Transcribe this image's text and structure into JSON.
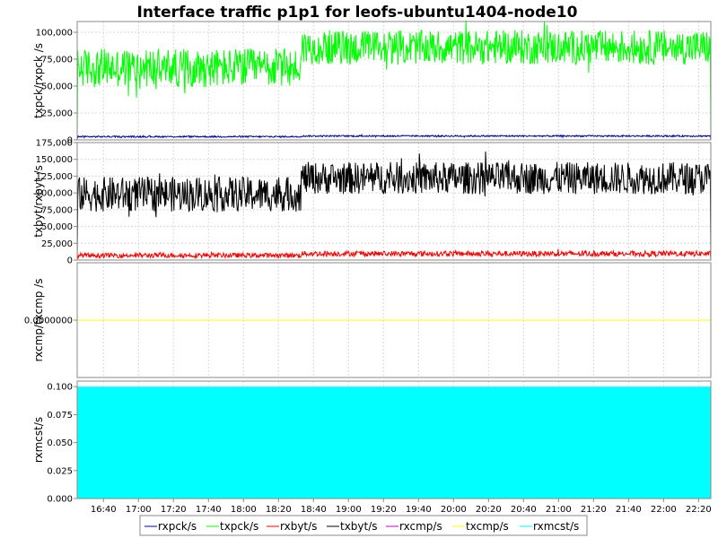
{
  "chart_data": {
    "type": "line",
    "title": "Interface traffic p1p1 for leofs-ubuntu1404-node10",
    "time": {
      "start": "16:25",
      "end": "22:27",
      "tick_labels": [
        "16:40",
        "17:00",
        "17:20",
        "17:40",
        "18:00",
        "18:20",
        "18:40",
        "19:00",
        "19:20",
        "19:40",
        "20:00",
        "20:20",
        "20:40",
        "21:00",
        "21:20",
        "21:40",
        "22:00",
        "22:20"
      ],
      "step_change_at": "18:33"
    },
    "panels": [
      {
        "ylabel": "txpck/rxpck /s",
        "ylim": [
          0,
          110000
        ],
        "ytick_labels": [
          "0",
          "25,000",
          "50,000",
          "75,000",
          "100,000"
        ],
        "yticks": [
          0,
          25000,
          50000,
          75000,
          100000
        ],
        "grid": true,
        "series": [
          {
            "name": "txpck/s",
            "color": "#00ff00",
            "before_mean": 67000,
            "before_amp": 18000,
            "after_mean": 86000,
            "after_amp": 16000
          },
          {
            "name": "rxpck/s",
            "color": "#0000aa",
            "before_mean": 3000,
            "before_amp": 700,
            "after_mean": 3600,
            "after_amp": 700
          }
        ]
      },
      {
        "ylabel": "txbyt/rxbyt /s",
        "ylim": [
          0,
          175000
        ],
        "ytick_labels": [
          "0",
          "25,000",
          "50,000",
          "75,000",
          "100,000",
          "125,000",
          "150,000",
          "175,000"
        ],
        "yticks": [
          0,
          25000,
          50000,
          75000,
          100000,
          125000,
          150000,
          175000
        ],
        "grid": true,
        "series": [
          {
            "name": "txbyt/s",
            "color": "#000000",
            "before_mean": 98000,
            "before_amp": 26000,
            "after_mean": 122000,
            "after_amp": 24000
          },
          {
            "name": "rxbyt/s",
            "color": "#ff0000",
            "before_mean": 7000,
            "before_amp": 3500,
            "after_mean": 9500,
            "after_amp": 4000
          }
        ]
      },
      {
        "ylabel": "rxcmp/txcmp /s",
        "ylim": [
          -1,
          1
        ],
        "ytick_labels": [
          "0.0000000"
        ],
        "yticks": [
          0
        ],
        "grid": true,
        "series": [
          {
            "name": "rxcmp/s",
            "color": "#cc00cc",
            "value": 0
          },
          {
            "name": "txcmp/s",
            "color": "#ffff00",
            "value": 0
          }
        ]
      },
      {
        "ylabel": "rxmcst/s",
        "ylim": [
          0,
          0.105
        ],
        "ytick_labels": [
          "0.000",
          "0.025",
          "0.050",
          "0.075",
          "0.100"
        ],
        "yticks": [
          0,
          0.025,
          0.05,
          0.075,
          0.1
        ],
        "grid": true,
        "series": [
          {
            "name": "rxmcst/s",
            "color": "#00ffff",
            "value": 0.1,
            "fill": true
          }
        ]
      }
    ],
    "legend": {
      "placement": "bottom",
      "entries": [
        {
          "label": "rxpck/s",
          "color": "#0000aa"
        },
        {
          "label": "txpck/s",
          "color": "#00ff00"
        },
        {
          "label": "rxbyt/s",
          "color": "#ff0000"
        },
        {
          "label": "txbyt/s",
          "color": "#000000"
        },
        {
          "label": "rxcmp/s",
          "color": "#cc00cc"
        },
        {
          "label": "txcmp/s",
          "color": "#ffff00"
        },
        {
          "label": "rxmcst/s",
          "color": "#00ffff"
        }
      ]
    }
  }
}
